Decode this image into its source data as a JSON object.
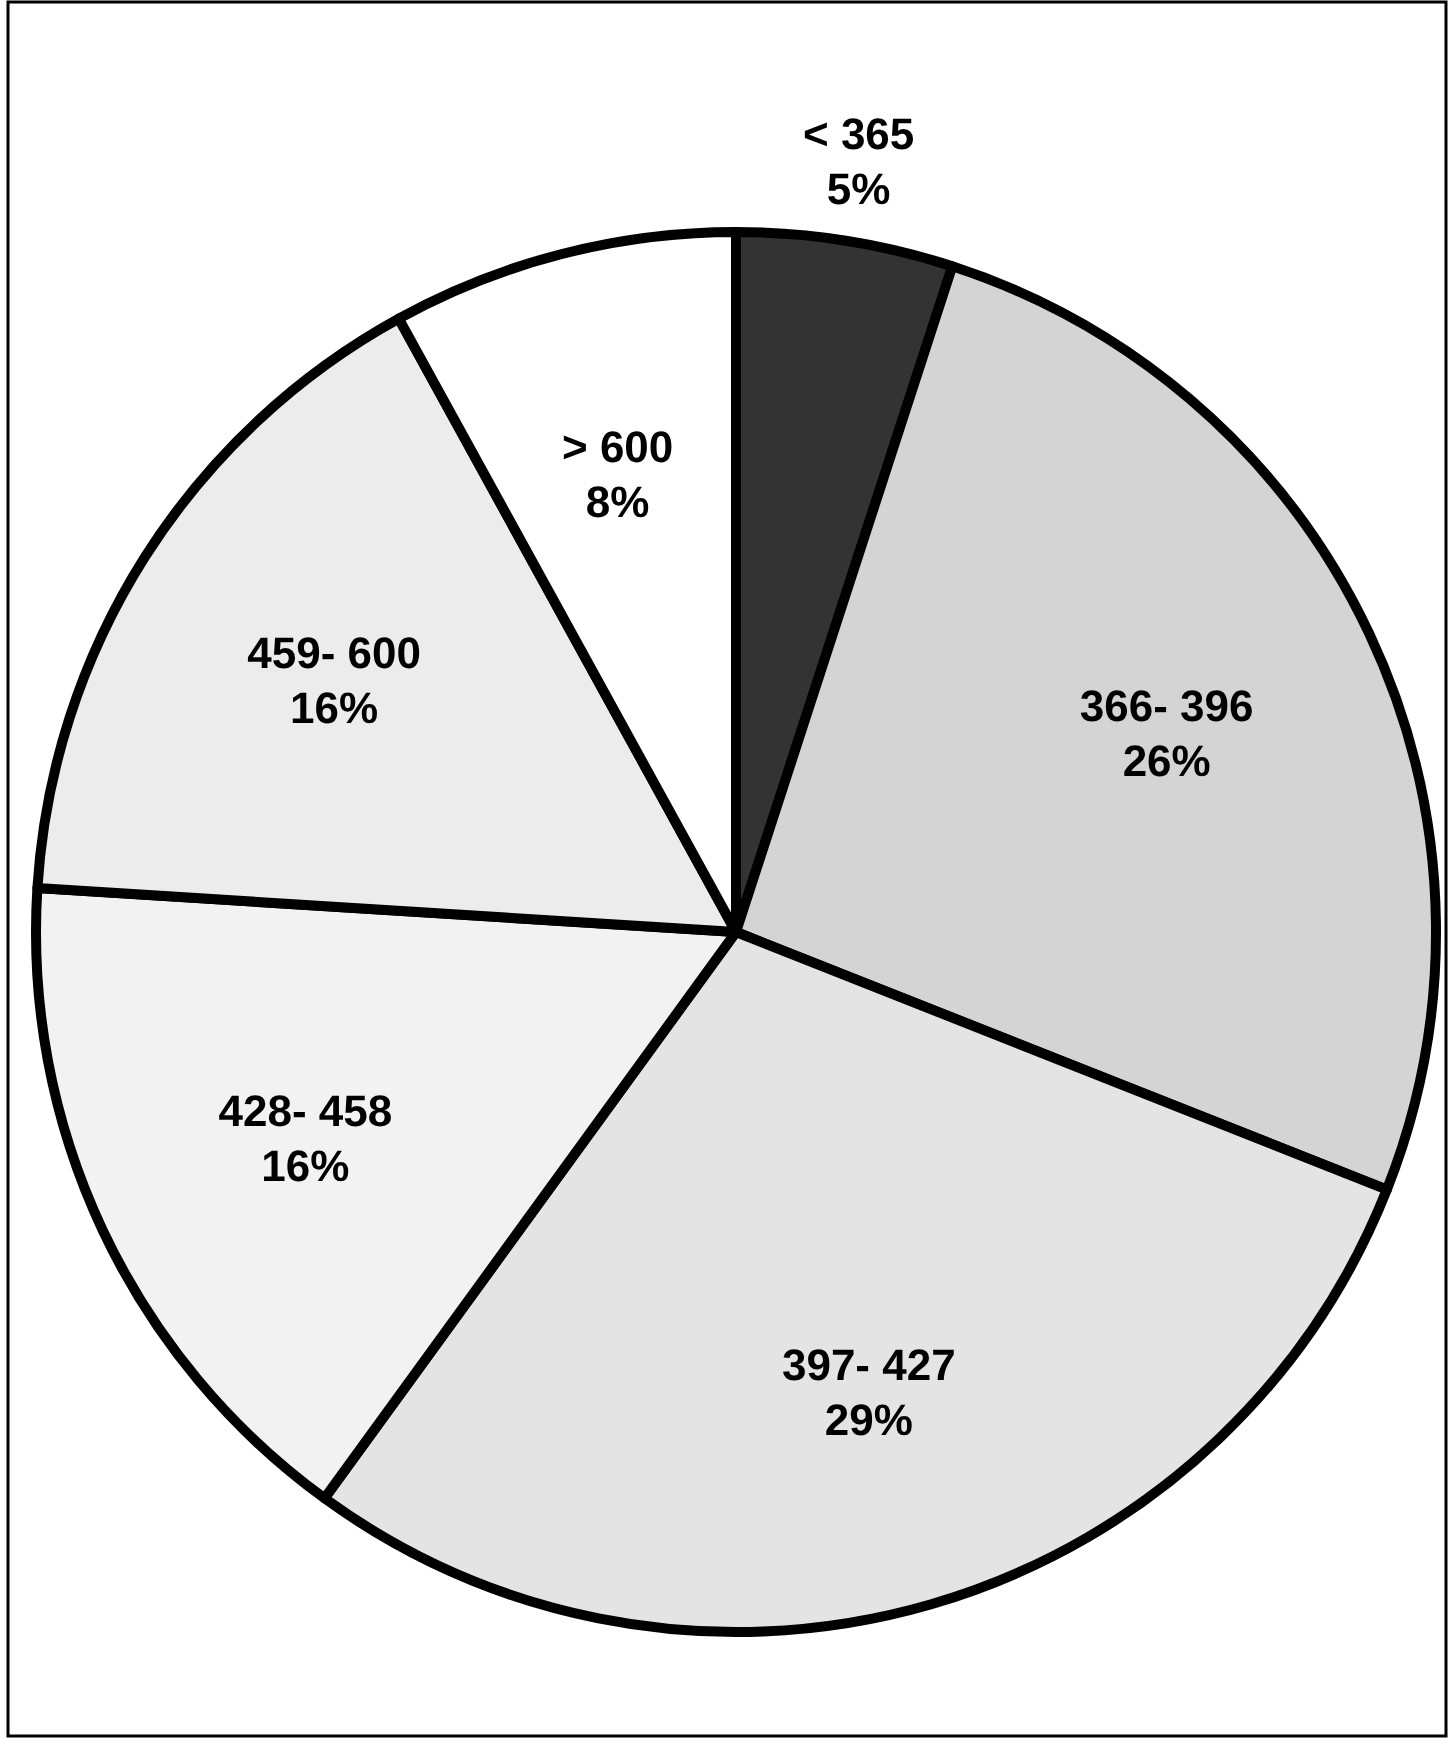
{
  "chart_data": {
    "type": "pie",
    "categories": [
      "< 365",
      "366- 396",
      "397- 427",
      "428- 458",
      "459- 600",
      "> 600"
    ],
    "values": [
      5,
      26,
      29,
      16,
      16,
      8
    ],
    "colors": [
      "#333333",
      "#d4d4d4",
      "#e4e4e4",
      "#f2f2f2",
      "#ececec",
      "#ffffff"
    ],
    "value_labels": [
      "5%",
      "26%",
      "29%",
      "16%",
      "16%",
      "8%"
    ]
  }
}
